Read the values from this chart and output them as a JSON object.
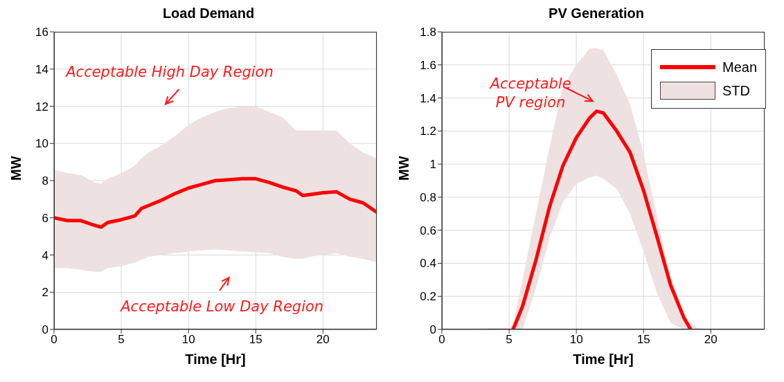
{
  "chart_data": [
    {
      "type": "line",
      "title": "Load Demand",
      "xlabel": "Time [Hr]",
      "ylabel": "MW",
      "x": [
        0,
        1,
        2,
        3,
        3.5,
        4,
        5,
        6,
        6.5,
        7,
        8,
        9,
        10,
        11,
        12,
        13,
        14,
        15,
        16,
        17,
        18,
        18.5,
        19,
        20,
        21,
        22,
        23,
        24
      ],
      "xlim": [
        0,
        24
      ],
      "xticks": [
        0,
        5,
        10,
        15,
        20
      ],
      "ylim": [
        0,
        16
      ],
      "yticks": [
        0,
        2,
        4,
        6,
        8,
        10,
        12,
        14,
        16
      ],
      "grid": true,
      "line_style": "solid",
      "marker": "none",
      "series": [
        {
          "type": "line",
          "color": "#ff0000",
          "values": [
            6.0,
            5.85,
            5.85,
            5.6,
            5.5,
            5.75,
            5.9,
            6.1,
            6.5,
            6.65,
            6.95,
            7.3,
            7.6,
            7.8,
            8.0,
            8.05,
            8.1,
            8.1,
            7.9,
            7.65,
            7.45,
            7.2,
            7.25,
            7.35,
            7.4,
            7.0,
            6.8,
            6.3
          ],
          "lower": [
            3.3,
            3.3,
            3.2,
            3.1,
            3.1,
            3.3,
            3.4,
            3.6,
            3.75,
            3.9,
            4.0,
            4.1,
            4.2,
            4.25,
            4.3,
            4.25,
            4.2,
            4.15,
            4.1,
            3.9,
            3.8,
            3.8,
            3.9,
            4.0,
            4.1,
            3.9,
            3.8,
            3.6
          ],
          "upper": [
            8.6,
            8.4,
            8.3,
            7.9,
            7.85,
            8.1,
            8.4,
            8.8,
            9.2,
            9.5,
            9.9,
            10.4,
            11.0,
            11.4,
            11.7,
            11.9,
            12.0,
            12.0,
            11.7,
            11.4,
            10.7,
            10.7,
            10.7,
            10.7,
            10.7,
            10.0,
            9.5,
            9.2
          ]
        }
      ],
      "annotations": [
        "Acceptable High Day Region",
        "Acceptable Low Day Region"
      ]
    },
    {
      "type": "line",
      "title": "PV Generation",
      "xlabel": "Time [Hr]",
      "ylabel": "MW",
      "x": [
        0,
        5,
        5.3,
        6,
        7,
        8,
        9,
        10,
        11,
        11.5,
        12,
        13,
        14,
        15,
        16,
        17,
        18,
        18.5,
        19,
        20,
        24
      ],
      "xlim": [
        0,
        24
      ],
      "xticks": [
        0,
        5,
        10,
        15,
        20
      ],
      "ylim": [
        0,
        1.8
      ],
      "yticks": [
        0,
        0.2,
        0.4,
        0.6,
        0.8,
        1,
        1.2,
        1.4,
        1.6,
        1.8
      ],
      "grid": true,
      "legend": "top right",
      "line_style": "solid",
      "marker": "none",
      "series": [
        {
          "name": "Mean",
          "type": "line",
          "color": "#ff0000",
          "values": [
            null,
            null,
            0,
            0.14,
            0.42,
            0.74,
            0.99,
            1.16,
            1.28,
            1.32,
            1.31,
            1.2,
            1.07,
            0.84,
            0.56,
            0.27,
            0.07,
            0,
            null,
            null,
            null
          ],
          "lower": [
            0,
            0,
            0,
            0,
            0.25,
            0.55,
            0.77,
            0.88,
            0.92,
            0.93,
            0.91,
            0.85,
            0.7,
            0.47,
            0.22,
            0.04,
            0,
            0,
            0,
            0,
            0
          ],
          "upper": [
            0,
            0.01,
            0.03,
            0.3,
            0.7,
            1.1,
            1.47,
            1.6,
            1.7,
            1.7,
            1.69,
            1.54,
            1.36,
            1.06,
            0.68,
            0.32,
            0.09,
            0.04,
            0.01,
            0,
            0
          ]
        },
        {
          "name": "STD",
          "type": "area",
          "color": "#ede1e2",
          "values": [
            null,
            null,
            null,
            null,
            null,
            null,
            null,
            null,
            null,
            null,
            null,
            null,
            null,
            null,
            null,
            null,
            null,
            null,
            null,
            null,
            null
          ]
        }
      ],
      "annotations": [
        "Acceptable PV region"
      ]
    }
  ]
}
